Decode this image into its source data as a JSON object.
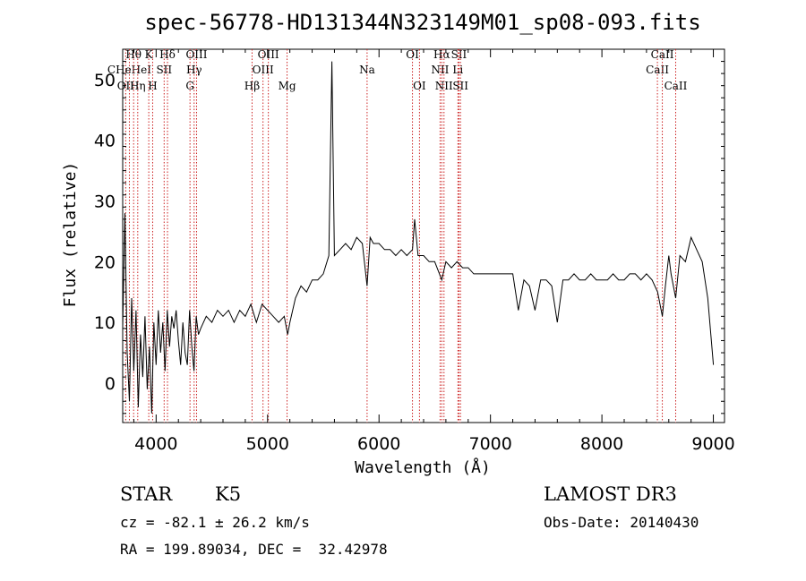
{
  "chart_data": {
    "type": "line",
    "title": "spec-56778-HD131344N323149M01_sp08-093.fits",
    "xlabel": "Wavelength (Å)",
    "ylabel": "Flux (relative)",
    "xlim": [
      3700,
      9100
    ],
    "ylim": [
      -6.5,
      55
    ],
    "xticks": [
      4000,
      5000,
      6000,
      7000,
      8000,
      9000
    ],
    "yticks": [
      0,
      10,
      20,
      30,
      40,
      50
    ],
    "grid": false,
    "series": [
      {
        "points": [
          [
            3700,
            9
          ],
          [
            3720,
            28
          ],
          [
            3740,
            5
          ],
          [
            3760,
            -3
          ],
          [
            3780,
            14
          ],
          [
            3800,
            2
          ],
          [
            3820,
            12
          ],
          [
            3840,
            -4
          ],
          [
            3860,
            8
          ],
          [
            3880,
            1
          ],
          [
            3900,
            11
          ],
          [
            3920,
            -1
          ],
          [
            3940,
            6
          ],
          [
            3960,
            -5
          ],
          [
            3980,
            10
          ],
          [
            4000,
            3
          ],
          [
            4020,
            12
          ],
          [
            4040,
            5
          ],
          [
            4060,
            10
          ],
          [
            4080,
            2
          ],
          [
            4100,
            12
          ],
          [
            4120,
            6
          ],
          [
            4140,
            11
          ],
          [
            4160,
            9
          ],
          [
            4180,
            12
          ],
          [
            4200,
            7
          ],
          [
            4220,
            3
          ],
          [
            4240,
            10
          ],
          [
            4260,
            5
          ],
          [
            4280,
            3
          ],
          [
            4300,
            12
          ],
          [
            4320,
            6
          ],
          [
            4340,
            2
          ],
          [
            4360,
            11
          ],
          [
            4380,
            8
          ],
          [
            4400,
            9
          ],
          [
            4450,
            11
          ],
          [
            4500,
            10
          ],
          [
            4550,
            12
          ],
          [
            4600,
            11
          ],
          [
            4650,
            12
          ],
          [
            4700,
            10
          ],
          [
            4750,
            12
          ],
          [
            4800,
            11
          ],
          [
            4850,
            13
          ],
          [
            4900,
            10
          ],
          [
            4950,
            13
          ],
          [
            5000,
            12
          ],
          [
            5050,
            11
          ],
          [
            5100,
            10
          ],
          [
            5150,
            11
          ],
          [
            5180,
            8
          ],
          [
            5200,
            10
          ],
          [
            5250,
            14
          ],
          [
            5300,
            16
          ],
          [
            5350,
            15
          ],
          [
            5400,
            17
          ],
          [
            5450,
            17
          ],
          [
            5500,
            18
          ],
          [
            5550,
            21
          ],
          [
            5577,
            53
          ],
          [
            5600,
            21
          ],
          [
            5650,
            22
          ],
          [
            5700,
            23
          ],
          [
            5750,
            22
          ],
          [
            5800,
            24
          ],
          [
            5850,
            23
          ],
          [
            5893,
            16
          ],
          [
            5920,
            24
          ],
          [
            5950,
            23
          ],
          [
            6000,
            23
          ],
          [
            6050,
            22
          ],
          [
            6100,
            22
          ],
          [
            6150,
            21
          ],
          [
            6200,
            22
          ],
          [
            6250,
            21
          ],
          [
            6300,
            22
          ],
          [
            6320,
            27
          ],
          [
            6350,
            21
          ],
          [
            6400,
            21
          ],
          [
            6450,
            20
          ],
          [
            6500,
            20
          ],
          [
            6563,
            17
          ],
          [
            6600,
            20
          ],
          [
            6650,
            19
          ],
          [
            6700,
            20
          ],
          [
            6750,
            19
          ],
          [
            6800,
            19
          ],
          [
            6850,
            18
          ],
          [
            6900,
            18
          ],
          [
            6950,
            18
          ],
          [
            7000,
            18
          ],
          [
            7050,
            18
          ],
          [
            7100,
            18
          ],
          [
            7150,
            18
          ],
          [
            7200,
            18
          ],
          [
            7250,
            12
          ],
          [
            7300,
            17
          ],
          [
            7350,
            16
          ],
          [
            7400,
            12
          ],
          [
            7450,
            17
          ],
          [
            7500,
            17
          ],
          [
            7550,
            16
          ],
          [
            7600,
            10
          ],
          [
            7650,
            17
          ],
          [
            7700,
            17
          ],
          [
            7750,
            18
          ],
          [
            7800,
            17
          ],
          [
            7850,
            17
          ],
          [
            7900,
            18
          ],
          [
            7950,
            17
          ],
          [
            8000,
            17
          ],
          [
            8050,
            17
          ],
          [
            8100,
            18
          ],
          [
            8150,
            17
          ],
          [
            8200,
            17
          ],
          [
            8250,
            18
          ],
          [
            8300,
            18
          ],
          [
            8350,
            17
          ],
          [
            8400,
            18
          ],
          [
            8450,
            17
          ],
          [
            8500,
            15
          ],
          [
            8542,
            11
          ],
          [
            8570,
            16
          ],
          [
            8600,
            21
          ],
          [
            8620,
            18
          ],
          [
            8662,
            14
          ],
          [
            8700,
            21
          ],
          [
            8750,
            20
          ],
          [
            8800,
            24
          ],
          [
            8850,
            22
          ],
          [
            8900,
            20
          ],
          [
            8950,
            14
          ],
          [
            9000,
            3
          ]
        ]
      }
    ],
    "line_markers": [
      {
        "label": "OII",
        "x": 3727,
        "row": 3
      },
      {
        "label": "CHeHeI",
        "x": 3760,
        "row": 2
      },
      {
        "label": "Hθ",
        "x": 3798,
        "row": 1
      },
      {
        "label": "Hη",
        "x": 3835,
        "row": 3
      },
      {
        "label": "K",
        "x": 3934,
        "row": 1
      },
      {
        "label": "H",
        "x": 3969,
        "row": 3
      },
      {
        "label": "SII",
        "x": 4072,
        "row": 2
      },
      {
        "label": "Hδ",
        "x": 4102,
        "row": 1
      },
      {
        "label": "G",
        "x": 4304,
        "row": 3
      },
      {
        "label": "Hγ",
        "x": 4341,
        "row": 2
      },
      {
        "label": "OIII",
        "x": 4363,
        "row": 1
      },
      {
        "label": "Hβ",
        "x": 4861,
        "row": 3
      },
      {
        "label": "OIII",
        "x": 4959,
        "row": 2
      },
      {
        "label": "OIII",
        "x": 5007,
        "row": 1
      },
      {
        "label": "Mg",
        "x": 5175,
        "row": 3
      },
      {
        "label": "Na",
        "x": 5893,
        "row": 2
      },
      {
        "label": "OI",
        "x": 6300,
        "row": 1
      },
      {
        "label": "OI",
        "x": 6363,
        "row": 3
      },
      {
        "label": "NII",
        "x": 6548,
        "row": 2
      },
      {
        "label": "Hα",
        "x": 6563,
        "row": 1
      },
      {
        "label": "NII",
        "x": 6583,
        "row": 3
      },
      {
        "label": "Li",
        "x": 6708,
        "row": 2
      },
      {
        "label": "SII",
        "x": 6717,
        "row": 1
      },
      {
        "label": "SII",
        "x": 6731,
        "row": 3
      },
      {
        "label": "CaII",
        "x": 8498,
        "row": 2
      },
      {
        "label": "CaII",
        "x": 8542,
        "row": 1
      },
      {
        "label": "CaII",
        "x": 8662,
        "row": 3
      }
    ]
  },
  "info": {
    "class": "STAR",
    "subclass": "K5",
    "cz": "cz = -82.1 ± 26.2 km/s",
    "coords": "RA = 199.89034, DEC =  32.42978",
    "survey": "LAMOST DR3",
    "obs_date": "Obs-Date: 20140430"
  },
  "colors": {
    "marker": "#cc2222",
    "ink": "#000000"
  }
}
